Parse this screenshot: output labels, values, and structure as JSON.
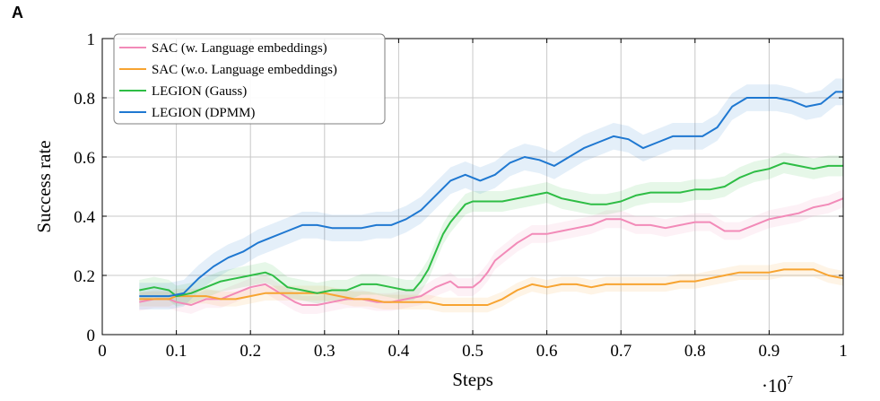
{
  "panel_label": "A",
  "chart_data": {
    "type": "line",
    "xlabel": "Steps",
    "ylabel": "Success rate",
    "x_multiplier_label": "·10",
    "x_multiplier_exp": "7",
    "xlim": [
      0,
      1
    ],
    "ylim": [
      0,
      1
    ],
    "xticks": [
      0,
      0.1,
      0.2,
      0.3,
      0.4,
      0.5,
      0.6,
      0.7,
      0.8,
      0.9,
      1
    ],
    "xtick_labels": [
      "0",
      "0.1",
      "0.2",
      "0.3",
      "0.4",
      "0.5",
      "0.6",
      "0.7",
      "0.8",
      "0.9",
      "1"
    ],
    "yticks": [
      0,
      0.2,
      0.4,
      0.6,
      0.8,
      1
    ],
    "ytick_labels": [
      "0",
      "0.2",
      "0.4",
      "0.6",
      "0.8",
      "1"
    ],
    "grid": true,
    "legend_position": "top-left",
    "series": [
      {
        "name": "SAC (w. Language embeddings)",
        "color": "#f28ab8",
        "band": 0.03,
        "x": [
          0.05,
          0.07,
          0.09,
          0.1,
          0.12,
          0.14,
          0.16,
          0.18,
          0.2,
          0.22,
          0.24,
          0.26,
          0.27,
          0.29,
          0.31,
          0.33,
          0.35,
          0.37,
          0.39,
          0.41,
          0.43,
          0.45,
          0.47,
          0.48,
          0.5,
          0.51,
          0.52,
          0.53,
          0.54,
          0.56,
          0.58,
          0.6,
          0.62,
          0.64,
          0.66,
          0.68,
          0.7,
          0.72,
          0.74,
          0.76,
          0.78,
          0.8,
          0.82,
          0.84,
          0.86,
          0.88,
          0.9,
          0.92,
          0.94,
          0.96,
          0.98,
          1.0
        ],
        "y": [
          0.11,
          0.12,
          0.12,
          0.11,
          0.1,
          0.12,
          0.12,
          0.14,
          0.16,
          0.17,
          0.14,
          0.11,
          0.1,
          0.1,
          0.11,
          0.12,
          0.12,
          0.11,
          0.11,
          0.12,
          0.13,
          0.16,
          0.18,
          0.16,
          0.16,
          0.18,
          0.21,
          0.25,
          0.27,
          0.31,
          0.34,
          0.34,
          0.35,
          0.36,
          0.37,
          0.39,
          0.39,
          0.37,
          0.37,
          0.36,
          0.37,
          0.38,
          0.38,
          0.35,
          0.35,
          0.37,
          0.39,
          0.4,
          0.41,
          0.43,
          0.44,
          0.46
        ]
      },
      {
        "name": "SAC (w.o. Language embeddings)",
        "color": "#f7a431",
        "band": 0.025,
        "x": [
          0.05,
          0.07,
          0.09,
          0.1,
          0.12,
          0.14,
          0.16,
          0.18,
          0.2,
          0.22,
          0.24,
          0.26,
          0.28,
          0.3,
          0.32,
          0.34,
          0.36,
          0.38,
          0.4,
          0.42,
          0.44,
          0.46,
          0.48,
          0.5,
          0.52,
          0.54,
          0.56,
          0.58,
          0.6,
          0.62,
          0.64,
          0.66,
          0.68,
          0.7,
          0.72,
          0.74,
          0.76,
          0.78,
          0.8,
          0.82,
          0.84,
          0.86,
          0.88,
          0.9,
          0.92,
          0.94,
          0.96,
          0.98,
          1.0
        ],
        "y": [
          0.12,
          0.12,
          0.12,
          0.13,
          0.13,
          0.13,
          0.12,
          0.12,
          0.13,
          0.14,
          0.14,
          0.14,
          0.14,
          0.14,
          0.13,
          0.12,
          0.12,
          0.11,
          0.11,
          0.11,
          0.11,
          0.1,
          0.1,
          0.1,
          0.1,
          0.12,
          0.15,
          0.17,
          0.16,
          0.17,
          0.17,
          0.16,
          0.17,
          0.17,
          0.17,
          0.17,
          0.17,
          0.18,
          0.18,
          0.19,
          0.2,
          0.21,
          0.21,
          0.21,
          0.22,
          0.22,
          0.22,
          0.2,
          0.19
        ]
      },
      {
        "name": "LEGION (Gauss)",
        "color": "#2ebd45",
        "band": 0.035,
        "x": [
          0.05,
          0.07,
          0.09,
          0.1,
          0.12,
          0.14,
          0.16,
          0.18,
          0.2,
          0.22,
          0.23,
          0.25,
          0.27,
          0.29,
          0.31,
          0.33,
          0.35,
          0.37,
          0.39,
          0.41,
          0.42,
          0.43,
          0.44,
          0.45,
          0.46,
          0.47,
          0.48,
          0.49,
          0.5,
          0.52,
          0.54,
          0.56,
          0.58,
          0.6,
          0.62,
          0.64,
          0.66,
          0.68,
          0.7,
          0.72,
          0.74,
          0.76,
          0.78,
          0.8,
          0.82,
          0.84,
          0.86,
          0.88,
          0.9,
          0.92,
          0.94,
          0.96,
          0.98,
          1.0
        ],
        "y": [
          0.15,
          0.16,
          0.15,
          0.13,
          0.14,
          0.16,
          0.18,
          0.19,
          0.2,
          0.21,
          0.2,
          0.16,
          0.15,
          0.14,
          0.15,
          0.15,
          0.17,
          0.17,
          0.16,
          0.15,
          0.15,
          0.18,
          0.22,
          0.28,
          0.34,
          0.38,
          0.41,
          0.44,
          0.45,
          0.45,
          0.45,
          0.46,
          0.47,
          0.48,
          0.46,
          0.45,
          0.44,
          0.44,
          0.45,
          0.47,
          0.48,
          0.48,
          0.48,
          0.49,
          0.49,
          0.5,
          0.53,
          0.55,
          0.56,
          0.58,
          0.57,
          0.56,
          0.57,
          0.57
        ]
      },
      {
        "name": "LEGION (DPMM)",
        "color": "#1f78d1",
        "band": 0.045,
        "x": [
          0.05,
          0.07,
          0.09,
          0.11,
          0.13,
          0.15,
          0.17,
          0.19,
          0.21,
          0.23,
          0.25,
          0.27,
          0.29,
          0.31,
          0.33,
          0.35,
          0.37,
          0.39,
          0.41,
          0.43,
          0.45,
          0.47,
          0.49,
          0.51,
          0.53,
          0.55,
          0.57,
          0.59,
          0.61,
          0.63,
          0.65,
          0.67,
          0.69,
          0.71,
          0.73,
          0.75,
          0.77,
          0.79,
          0.81,
          0.83,
          0.85,
          0.87,
          0.89,
          0.91,
          0.93,
          0.95,
          0.97,
          0.99,
          1.0
        ],
        "y": [
          0.13,
          0.13,
          0.13,
          0.14,
          0.19,
          0.23,
          0.26,
          0.28,
          0.31,
          0.33,
          0.35,
          0.37,
          0.37,
          0.36,
          0.36,
          0.36,
          0.37,
          0.37,
          0.39,
          0.42,
          0.47,
          0.52,
          0.54,
          0.52,
          0.54,
          0.58,
          0.6,
          0.59,
          0.57,
          0.6,
          0.63,
          0.65,
          0.67,
          0.66,
          0.63,
          0.65,
          0.67,
          0.67,
          0.67,
          0.7,
          0.77,
          0.8,
          0.8,
          0.8,
          0.79,
          0.77,
          0.78,
          0.82,
          0.82
        ]
      }
    ]
  }
}
